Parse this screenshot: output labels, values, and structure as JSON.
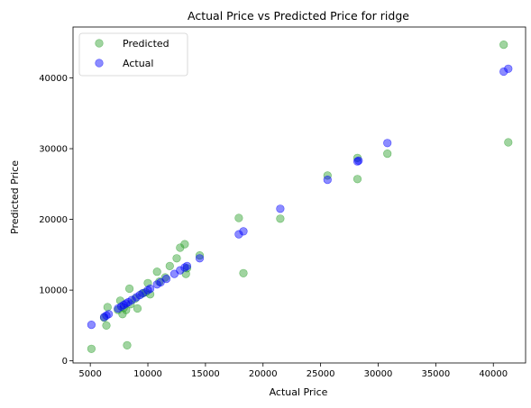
{
  "chart_data": {
    "type": "scatter",
    "title": "Actual Price vs Predicted Price for ridge",
    "xlabel": "Actual Price",
    "ylabel": "Predicted Price",
    "xlim": [
      3500,
      42800
    ],
    "ylim": [
      -300,
      47200
    ],
    "xticks": [
      5000,
      10000,
      15000,
      20000,
      25000,
      30000,
      35000,
      40000
    ],
    "yticks": [
      0,
      10000,
      20000,
      30000,
      40000
    ],
    "grid": false,
    "legend_position": "top-left",
    "series": [
      {
        "name": "Predicted",
        "color": "#2ca02c",
        "points": [
          [
            5100,
            1700
          ],
          [
            6200,
            6100
          ],
          [
            6400,
            5000
          ],
          [
            6500,
            7600
          ],
          [
            7400,
            7200
          ],
          [
            7600,
            8500
          ],
          [
            7800,
            6600
          ],
          [
            7900,
            7500
          ],
          [
            8100,
            7200
          ],
          [
            8200,
            2200
          ],
          [
            8400,
            10200
          ],
          [
            8500,
            8000
          ],
          [
            8900,
            8800
          ],
          [
            9100,
            7400
          ],
          [
            9500,
            9500
          ],
          [
            9800,
            9700
          ],
          [
            10000,
            11000
          ],
          [
            10200,
            9400
          ],
          [
            10800,
            12600
          ],
          [
            11000,
            11200
          ],
          [
            11500,
            11800
          ],
          [
            11900,
            13400
          ],
          [
            12500,
            14500
          ],
          [
            12800,
            16000
          ],
          [
            13200,
            16500
          ],
          [
            13300,
            12300
          ],
          [
            13400,
            13100
          ],
          [
            14500,
            14900
          ],
          [
            17900,
            20200
          ],
          [
            18300,
            12400
          ],
          [
            21500,
            20100
          ],
          [
            25600,
            26200
          ],
          [
            28200,
            25700
          ],
          [
            28200,
            28700
          ],
          [
            30800,
            29300
          ],
          [
            40900,
            44700
          ],
          [
            41300,
            30900
          ]
        ]
      },
      {
        "name": "Actual",
        "color": "#0000ff",
        "points": [
          [
            5100,
            5100
          ],
          [
            6200,
            6200
          ],
          [
            6400,
            6400
          ],
          [
            6600,
            6600
          ],
          [
            7400,
            7400
          ],
          [
            7700,
            7700
          ],
          [
            7900,
            7900
          ],
          [
            8100,
            8100
          ],
          [
            8300,
            8300
          ],
          [
            8600,
            8600
          ],
          [
            9000,
            9000
          ],
          [
            9300,
            9300
          ],
          [
            9600,
            9600
          ],
          [
            10000,
            10000
          ],
          [
            10200,
            10200
          ],
          [
            10800,
            10800
          ],
          [
            11100,
            11100
          ],
          [
            11600,
            11600
          ],
          [
            12300,
            12300
          ],
          [
            12800,
            12800
          ],
          [
            13200,
            13200
          ],
          [
            13400,
            13400
          ],
          [
            14500,
            14500
          ],
          [
            17900,
            17900
          ],
          [
            18300,
            18300
          ],
          [
            21500,
            21500
          ],
          [
            25600,
            25600
          ],
          [
            28200,
            28200
          ],
          [
            28300,
            28300
          ],
          [
            30800,
            30800
          ],
          [
            40900,
            40900
          ],
          [
            41300,
            41300
          ]
        ]
      }
    ]
  }
}
